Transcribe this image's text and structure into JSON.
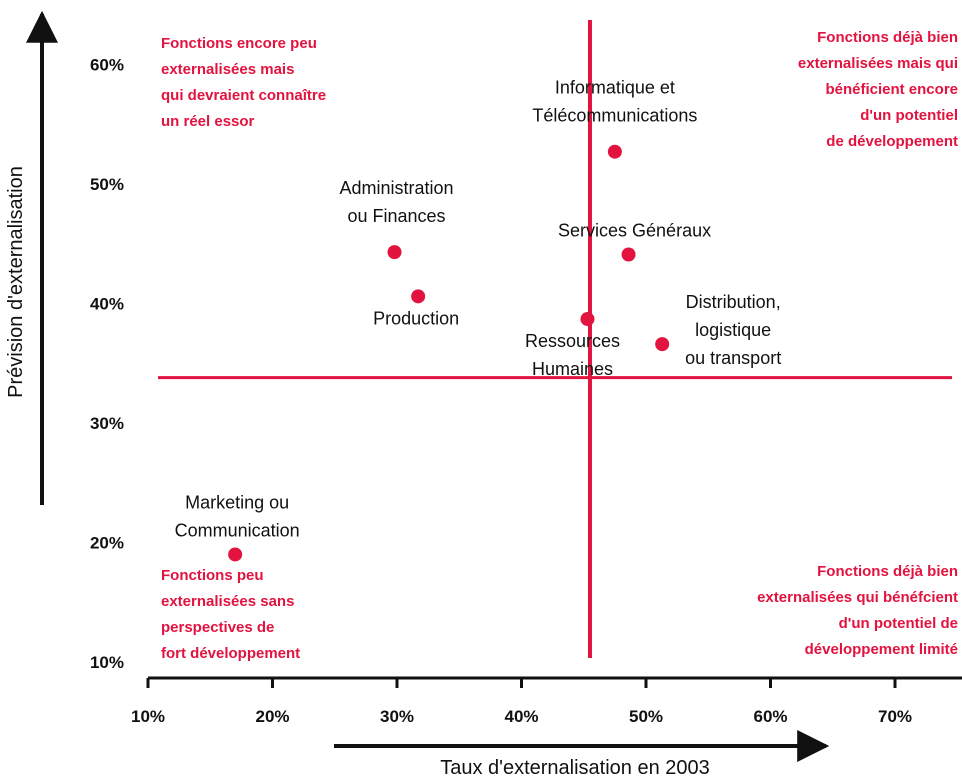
{
  "chart_data": {
    "type": "scatter",
    "xlabel": "Taux d'externalisation en 2003",
    "ylabel": "Prévision d'externalisation",
    "xlim": [
      10,
      72
    ],
    "ylim": [
      10,
      62
    ],
    "x_ticks": [
      "10%",
      "20%",
      "30%",
      "40%",
      "50%",
      "60%",
      "70%"
    ],
    "y_ticks": [
      "10%",
      "20%",
      "30%",
      "40%",
      "50%",
      "60%"
    ],
    "x_tick_values": [
      10,
      20,
      30,
      40,
      50,
      60,
      70
    ],
    "y_tick_values": [
      10,
      20,
      30,
      40,
      50,
      60
    ],
    "reference_lines": {
      "x": 45.5,
      "y": 33.8
    },
    "point_color": "#e2133f",
    "line_color": "#e2133f",
    "points": [
      {
        "label": "Informatique et\nTélécommunications",
        "x": 47.5,
        "y": 52.7
      },
      {
        "label": "Administration\nou Finances",
        "x": 29.8,
        "y": 44.3
      },
      {
        "label": "Services Généraux",
        "x": 48.6,
        "y": 44.1
      },
      {
        "label": "Production",
        "x": 31.7,
        "y": 40.6
      },
      {
        "label": "Ressources\nHumaines",
        "x": 45.3,
        "y": 38.7
      },
      {
        "label": "Distribution,\nlogistique\nou transport",
        "x": 51.3,
        "y": 36.6
      },
      {
        "label": "Marketing ou\nCommunication",
        "x": 17.0,
        "y": 19.0
      }
    ],
    "quadrant_notes": {
      "top_left": "Fonctions encore peu\nexternalisées mais\nqui devraient connaître\nun réel essor",
      "top_right": "Fonctions déjà bien\nexternalisées mais qui\nbénéficient encore\nd'un potentiel\nde développement",
      "bottom_left": "Fonctions peu\nexternalisées sans\nperspectives de\nfort développement",
      "bottom_right": "Fonctions déjà bien\nexternalisées qui bénéfcient\nd'un potentiel de\ndéveloppement limité"
    }
  }
}
